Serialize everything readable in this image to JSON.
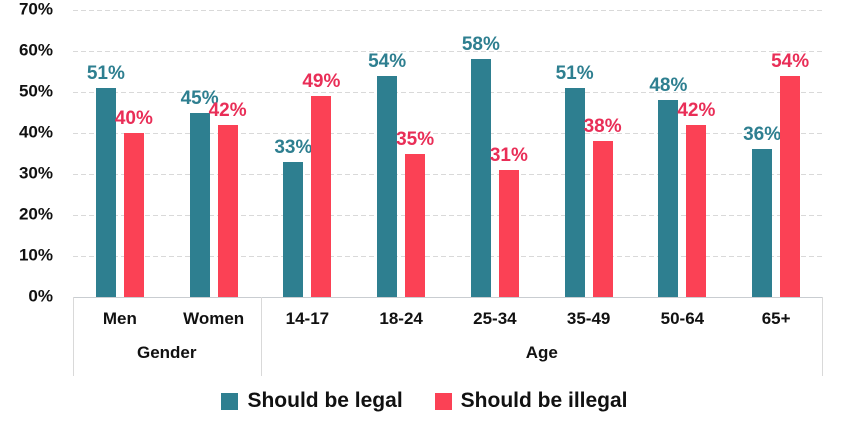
{
  "chart_data": {
    "type": "bar",
    "title": "",
    "categories": [
      "Men",
      "Women",
      "14-17",
      "18-24",
      "25-34",
      "35-49",
      "50-64",
      "65+"
    ],
    "group_axis": [
      {
        "label": "Gender",
        "span": 2
      },
      {
        "label": "Age",
        "span": 6
      }
    ],
    "series": [
      {
        "name": "Should be legal",
        "color": "#2e7f90",
        "label_color": "#2e7f90",
        "values": [
          51,
          45,
          33,
          54,
          58,
          51,
          48,
          36
        ]
      },
      {
        "name": "Should be illegal",
        "color": "#fb4155",
        "label_color": "#e92e57",
        "values": [
          40,
          42,
          49,
          35,
          31,
          38,
          42,
          54
        ]
      }
    ],
    "value_suffix": "%",
    "y_ticks": [
      "70%",
      "60%",
      "50%",
      "40%",
      "30%",
      "20%",
      "10%",
      "0%"
    ],
    "ylim": [
      0,
      70
    ],
    "grid": "horizontal-dashed",
    "gridline_color": "#d9d9d9",
    "axis_line_color": "#c9cdd1",
    "legend_position": "bottom"
  }
}
